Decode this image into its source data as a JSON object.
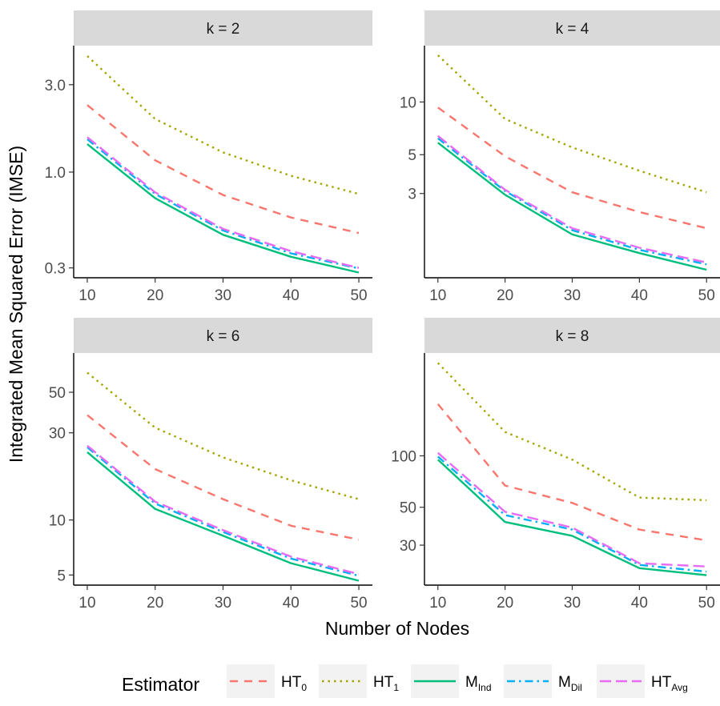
{
  "chart_data": {
    "type": "line",
    "layout": "facet-grid-2x2",
    "xlabel": "Number of Nodes",
    "ylabel": "Integrated Mean Squared Error (IMSE)",
    "y_scale": "log",
    "grid": false,
    "legend": {
      "placement": "bottom",
      "title": "Estimator",
      "entries": [
        {
          "key": "HT0",
          "base": "HT",
          "sub": "0"
        },
        {
          "key": "HT1",
          "base": "HT",
          "sub": "1"
        },
        {
          "key": "MInd",
          "base": "M",
          "sub": "Ind"
        },
        {
          "key": "MDil",
          "base": "M",
          "sub": "Dil"
        },
        {
          "key": "HTAvg",
          "base": "HT",
          "sub": "Avg"
        }
      ]
    },
    "styles": {
      "HT0": {
        "color": "#F8766D",
        "dash": "10 8"
      },
      "HT1": {
        "color": "#A3A500",
        "dash": "2.5 5"
      },
      "MInd": {
        "color": "#00BF7D",
        "dash": ""
      },
      "MDil": {
        "color": "#00B0F6",
        "dash": "10 5 2.5 5"
      },
      "HTAvg": {
        "color": "#E76BF3",
        "dash": "14 6"
      }
    },
    "panels": [
      {
        "strip": "k = 2",
        "x": [
          10,
          20,
          30,
          40,
          50
        ],
        "x_ticks": [
          "10",
          "20",
          "30",
          "40",
          "50"
        ],
        "y_ticks": [
          {
            "label": "0.3",
            "value": 0.3
          },
          {
            "label": "1.0",
            "value": 1.0
          },
          {
            "label": "3.0",
            "value": 3.0
          }
        ],
        "ylim": [
          0.265,
          4.9
        ],
        "series": [
          {
            "key": "HT0",
            "values": [
              2.32,
              1.16,
              0.75,
              0.565,
              0.465
            ]
          },
          {
            "key": "HT1",
            "values": [
              4.3,
              1.95,
              1.28,
              0.955,
              0.76
            ]
          },
          {
            "key": "MInd",
            "values": [
              1.42,
              0.72,
              0.455,
              0.345,
              0.283
            ]
          },
          {
            "key": "MDil",
            "values": [
              1.51,
              0.76,
              0.48,
              0.36,
              0.298
            ]
          },
          {
            "key": "HTAvg",
            "values": [
              1.55,
              0.775,
              0.49,
              0.37,
              0.3
            ]
          }
        ]
      },
      {
        "strip": "k = 4",
        "x": [
          10,
          20,
          30,
          40,
          50
        ],
        "x_ticks": [
          "10",
          "20",
          "30",
          "40",
          "50"
        ],
        "y_ticks": [
          {
            "label": "3",
            "value": 3
          },
          {
            "label": "5",
            "value": 5
          },
          {
            "label": "10",
            "value": 10
          }
        ],
        "ylim": [
          0.99,
          21
        ],
        "series": [
          {
            "key": "HT0",
            "values": [
              9.3,
              4.9,
              3.05,
              2.35,
              1.9
            ]
          },
          {
            "key": "HT1",
            "values": [
              18.5,
              8.0,
              5.5,
              4.05,
              3.05
            ]
          },
          {
            "key": "MInd",
            "values": [
              5.85,
              2.95,
              1.75,
              1.37,
              1.1
            ]
          },
          {
            "key": "MDil",
            "values": [
              6.2,
              3.1,
              1.85,
              1.43,
              1.18
            ]
          },
          {
            "key": "HTAvg",
            "values": [
              6.4,
              3.15,
              1.9,
              1.47,
              1.21
            ]
          }
        ]
      },
      {
        "strip": "k = 6",
        "x": [
          10,
          20,
          30,
          40,
          50
        ],
        "x_ticks": [
          "10",
          "20",
          "30",
          "40",
          "50"
        ],
        "y_ticks": [
          {
            "label": "5",
            "value": 5
          },
          {
            "label": "10",
            "value": 10
          },
          {
            "label": "30",
            "value": 30
          },
          {
            "label": "50",
            "value": 50
          }
        ],
        "ylim": [
          4.4,
          82
        ],
        "series": [
          {
            "key": "HT0",
            "values": [
              37.5,
              19.0,
              13.0,
              9.3,
              7.8
            ]
          },
          {
            "key": "HT1",
            "values": [
              64.0,
              32.0,
              22.0,
              16.5,
              13.0
            ]
          },
          {
            "key": "MInd",
            "values": [
              23.5,
              11.5,
              8.2,
              5.8,
              4.65
            ]
          },
          {
            "key": "MDil",
            "values": [
              25.0,
              12.3,
              8.6,
              6.15,
              4.95
            ]
          },
          {
            "key": "HTAvg",
            "values": [
              25.5,
              12.6,
              8.8,
              6.3,
              5.05
            ]
          }
        ]
      },
      {
        "strip": "k = 8",
        "x": [
          10,
          20,
          30,
          40,
          50
        ],
        "x_ticks": [
          "10",
          "20",
          "30",
          "40",
          "50"
        ],
        "y_ticks": [
          {
            "label": "30",
            "value": 30
          },
          {
            "label": "50",
            "value": 50
          },
          {
            "label": "100",
            "value": 100
          }
        ],
        "ylim": [
          17.5,
          400
        ],
        "series": [
          {
            "key": "HT0",
            "values": [
              201,
              67,
              53,
              37,
              32
            ]
          },
          {
            "key": "HT1",
            "values": [
              350,
              138,
              95,
              57,
              55
            ]
          },
          {
            "key": "MInd",
            "values": [
              95,
              41,
              34,
              22,
              20
            ]
          },
          {
            "key": "MDil",
            "values": [
              99,
              45,
              37,
              23,
              21
            ]
          },
          {
            "key": "HTAvg",
            "values": [
              104,
              47,
              38,
              23.5,
              22.5
            ]
          }
        ]
      }
    ]
  }
}
